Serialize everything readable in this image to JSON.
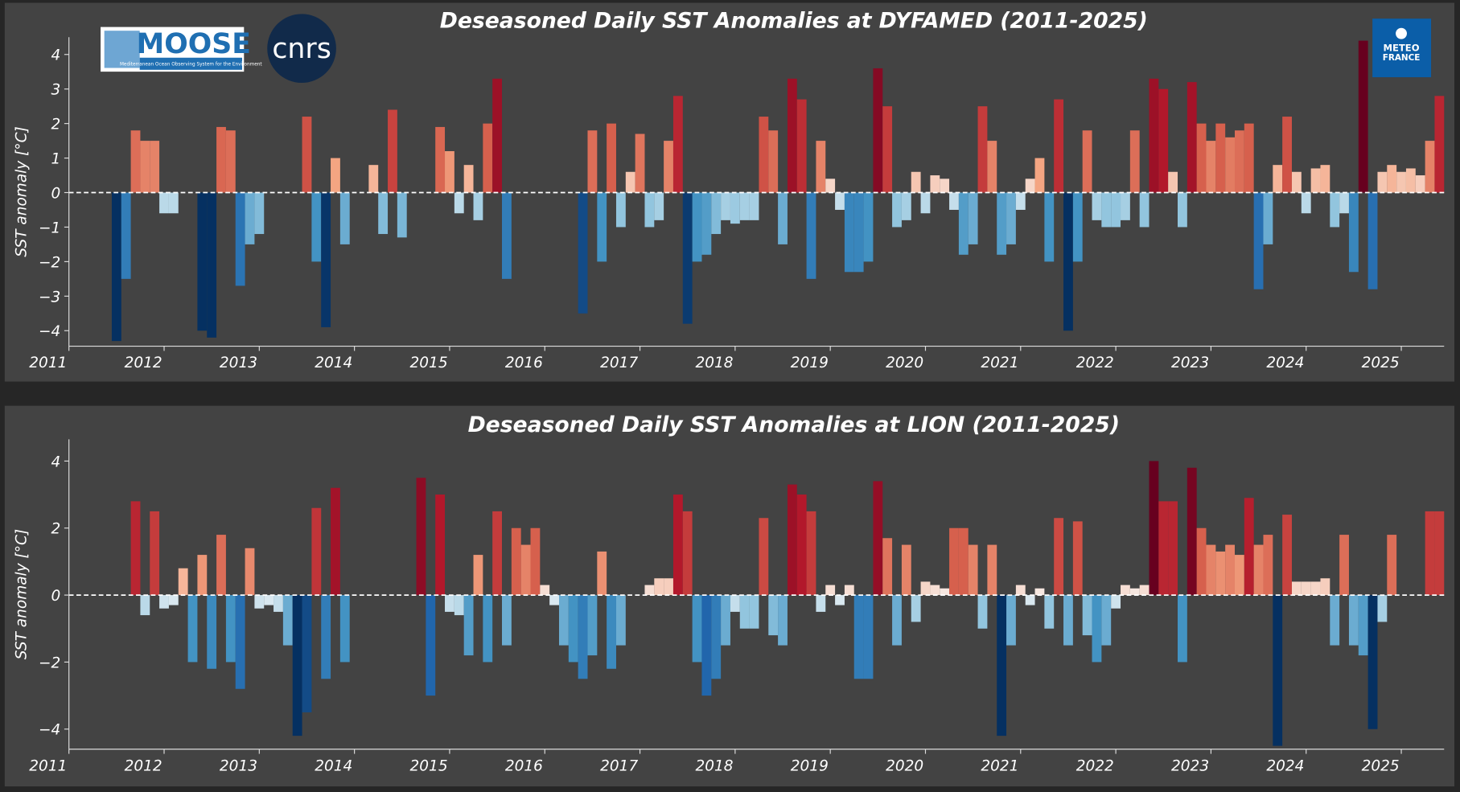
{
  "chart_data": [
    {
      "type": "bar",
      "title": "Deseasoned Daily SST Anomalies at DYFAMED (2011-2025)",
      "ylabel": "SST anomaly [°C]",
      "x": [
        2011.5,
        2011.6,
        2011.7,
        2011.8,
        2011.9,
        2012,
        2012.1,
        2012.2,
        2012.3,
        2012.4,
        2012.5,
        2012.6,
        2012.7,
        2012.8,
        2012.9,
        2013,
        2013.1,
        2013.2,
        2013.3,
        2013.4,
        2013.5,
        2013.6,
        2013.7,
        2013.8,
        2013.9,
        2014,
        2014.1,
        2014.2,
        2014.3,
        2014.4,
        2014.5,
        2014.6,
        2014.7,
        2014.8,
        2014.9,
        2015,
        2015.1,
        2015.2,
        2015.3,
        2015.4,
        2015.5,
        2015.6,
        2015.7,
        2015.8,
        2015.9,
        2016,
        2016.1,
        2016.2,
        2016.3,
        2016.4,
        2016.5,
        2016.6,
        2016.7,
        2016.8,
        2016.9,
        2017,
        2017.1,
        2017.2,
        2017.3,
        2017.4,
        2017.5,
        2017.6,
        2017.7,
        2017.8,
        2017.9,
        2018,
        2018.1,
        2018.2,
        2018.3,
        2018.4,
        2018.5,
        2018.6,
        2018.7,
        2018.8,
        2018.9,
        2019,
        2019.1,
        2019.2,
        2019.3,
        2019.4,
        2019.5,
        2019.6,
        2019.7,
        2019.8,
        2019.9,
        2020,
        2020.1,
        2020.2,
        2020.3,
        2020.4,
        2020.5,
        2020.6,
        2020.7,
        2020.8,
        2020.9,
        2021,
        2021.1,
        2021.2,
        2021.3,
        2021.4,
        2021.5,
        2021.6,
        2021.7,
        2021.8,
        2021.9,
        2022,
        2022.1,
        2022.2,
        2022.3,
        2022.4,
        2022.5,
        2022.6,
        2022.7,
        2022.8,
        2022.9,
        2023,
        2023.1,
        2023.2,
        2023.3,
        2023.4,
        2023.5,
        2023.6,
        2023.7,
        2023.8,
        2023.9,
        2024,
        2024.1,
        2024.2,
        2024.3,
        2024.4,
        2024.5,
        2024.6,
        2024.7,
        2024.8,
        2024.9,
        2025,
        2025.1,
        2025.2,
        2025.3,
        2025.4
      ],
      "values": [
        -4.3,
        -2.5,
        1.8,
        1.5,
        1.5,
        -0.6,
        -0.6,
        null,
        null,
        -4.0,
        -4.2,
        1.9,
        1.8,
        -2.7,
        -1.5,
        -1.2,
        null,
        null,
        null,
        null,
        2.2,
        -2.0,
        -3.9,
        1.0,
        -1.5,
        null,
        null,
        0.8,
        -1.2,
        2.4,
        -1.3,
        null,
        null,
        null,
        1.9,
        1.2,
        -0.6,
        0.8,
        -0.8,
        2.0,
        3.3,
        -2.5,
        null,
        null,
        null,
        null,
        null,
        null,
        null,
        -3.5,
        1.8,
        -2.0,
        2.0,
        -1.0,
        0.6,
        1.7,
        -1.0,
        -0.8,
        1.5,
        2.8,
        -3.8,
        -2.0,
        -1.8,
        -1.2,
        -0.8,
        -0.9,
        -0.8,
        -0.8,
        2.2,
        1.8,
        -1.5,
        3.3,
        2.7,
        -2.5,
        1.5,
        0.4,
        -0.5,
        -2.3,
        -2.3,
        -2.0,
        3.6,
        2.5,
        -1.0,
        -0.8,
        0.6,
        -0.6,
        0.5,
        0.4,
        -0.5,
        -1.8,
        -1.5,
        2.5,
        1.5,
        -1.8,
        -1.5,
        -0.5,
        0.4,
        1.0,
        -2.0,
        2.7,
        -4.0,
        -2.0,
        1.8,
        -0.8,
        -1.0,
        -1.0,
        -0.8,
        1.8,
        -1.0,
        3.3,
        3.0,
        0.6,
        -1.0,
        3.2,
        2.0,
        1.5,
        2.0,
        1.6,
        1.8,
        2.0,
        -2.8,
        -1.5,
        0.8,
        2.2,
        0.6,
        -0.6,
        0.7,
        0.8,
        -1.0,
        -0.6,
        -2.3,
        4.4,
        -2.8,
        0.6,
        0.8,
        0.6,
        0.7,
        0.5,
        1.5,
        2.8
      ],
      "xlim": [
        2011,
        2025.45
      ],
      "xticks": [
        2011,
        2012,
        2013,
        2014,
        2015,
        2016,
        2017,
        2018,
        2019,
        2020,
        2021,
        2022,
        2023,
        2024,
        2025
      ],
      "ylim": [
        -4.45,
        4.5
      ],
      "yticks": [
        {
          "value": -4,
          "label": "−4"
        },
        {
          "value": -3,
          "label": "−3"
        },
        {
          "value": -2,
          "label": "−2"
        },
        {
          "value": -1,
          "label": "−1"
        },
        0,
        1,
        2,
        3,
        4
      ],
      "colormap": [
        "#053061",
        "#2166ac",
        "#4393c3",
        "#92c5de",
        "#f7f7f7",
        "#f4a582",
        "#d6604d",
        "#b2182b",
        "#67001f"
      ],
      "clim": [
        -4,
        4
      ],
      "zero_line": true
    },
    {
      "type": "bar",
      "title": "Deseasoned Daily SST Anomalies at LION (2011-2025)",
      "ylabel": "SST anomaly [°C]",
      "x": [
        2011.7,
        2011.8,
        2011.9,
        2012,
        2012.1,
        2012.2,
        2012.3,
        2012.4,
        2012.5,
        2012.6,
        2012.7,
        2012.8,
        2012.9,
        2013,
        2013.1,
        2013.2,
        2013.3,
        2013.4,
        2013.5,
        2013.6,
        2013.7,
        2013.8,
        2013.9,
        2014,
        2014.1,
        2014.2,
        2014.3,
        2014.4,
        2014.5,
        2014.6,
        2014.7,
        2014.8,
        2014.9,
        2015,
        2015.1,
        2015.2,
        2015.3,
        2015.4,
        2015.5,
        2015.6,
        2015.7,
        2015.8,
        2015.9,
        2016,
        2016.1,
        2016.2,
        2016.3,
        2016.4,
        2016.5,
        2016.6,
        2016.7,
        2016.8,
        2016.9,
        2017,
        2017.1,
        2017.2,
        2017.3,
        2017.4,
        2017.5,
        2017.6,
        2017.7,
        2017.8,
        2017.9,
        2018,
        2018.1,
        2018.2,
        2018.3,
        2018.4,
        2018.5,
        2018.6,
        2018.7,
        2018.8,
        2018.9,
        2019,
        2019.1,
        2019.2,
        2019.3,
        2019.4,
        2019.5,
        2019.6,
        2019.7,
        2019.8,
        2019.9,
        2020,
        2020.1,
        2020.2,
        2020.3,
        2020.4,
        2020.5,
        2020.6,
        2020.7,
        2020.8,
        2020.9,
        2021,
        2021.1,
        2021.2,
        2021.3,
        2021.4,
        2021.5,
        2021.6,
        2021.7,
        2021.8,
        2021.9,
        2022,
        2022.1,
        2022.2,
        2022.3,
        2022.4,
        2022.5,
        2022.6,
        2022.7,
        2022.8,
        2022.9,
        2023,
        2023.1,
        2023.2,
        2023.3,
        2023.4,
        2023.5,
        2023.6,
        2023.7,
        2023.8,
        2023.9,
        2024,
        2024.1,
        2024.2,
        2024.3,
        2024.4,
        2024.5,
        2024.6,
        2024.7,
        2024.8,
        2024.9,
        2025,
        2025.1,
        2025.2,
        2025.3,
        2025.4
      ],
      "values": [
        2.8,
        -0.6,
        2.5,
        -0.4,
        -0.3,
        0.8,
        -2.0,
        1.2,
        -2.2,
        1.8,
        -2.0,
        -2.8,
        1.4,
        -0.4,
        -0.3,
        -0.5,
        -1.5,
        -4.2,
        -3.5,
        2.6,
        -2.5,
        3.2,
        -2.0,
        null,
        null,
        null,
        null,
        null,
        null,
        null,
        3.5,
        -3.0,
        3.0,
        -0.5,
        -0.6,
        -1.8,
        1.2,
        -2.0,
        2.5,
        -1.5,
        2.0,
        1.5,
        2.0,
        0.3,
        -0.3,
        -1.5,
        -2.0,
        -2.5,
        -1.8,
        1.3,
        -2.2,
        -1.5,
        null,
        null,
        0.3,
        0.5,
        0.5,
        3.0,
        2.5,
        -2.0,
        -3.0,
        -2.5,
        -1.5,
        -0.5,
        -1.0,
        -1.0,
        2.3,
        -1.2,
        -1.5,
        3.3,
        3.0,
        2.5,
        -0.5,
        0.3,
        -0.3,
        0.3,
        -2.5,
        -2.5,
        3.4,
        1.7,
        -1.5,
        1.5,
        -0.8,
        0.4,
        0.3,
        0.2,
        2.0,
        2.0,
        1.5,
        -1.0,
        1.5,
        -4.2,
        -1.5,
        0.3,
        -0.3,
        0.2,
        -1.0,
        2.3,
        -1.5,
        2.2,
        -1.2,
        -2.0,
        -1.5,
        -0.4,
        0.3,
        0.2,
        0.3,
        4.0,
        2.8,
        2.8,
        -2.0,
        3.8,
        2.0,
        1.5,
        1.3,
        1.5,
        1.2,
        2.9,
        1.5,
        1.8,
        -4.5,
        2.4,
        0.4,
        0.4,
        0.4,
        0.5,
        -1.5,
        1.8,
        -1.5,
        -1.8,
        -4.0,
        -0.8,
        1.8,
        null,
        null,
        null,
        2.5,
        2.5
      ],
      "xlim": [
        2011,
        2025.45
      ],
      "xticks": [
        2011,
        2012,
        2013,
        2014,
        2015,
        2016,
        2017,
        2018,
        2019,
        2020,
        2021,
        2022,
        2023,
        2024,
        2025
      ],
      "ylim": [
        -4.6,
        4.65
      ],
      "yticks": [
        {
          "value": -4,
          "label": "−4"
        },
        {
          "value": -2,
          "label": "−2"
        },
        0,
        2,
        4
      ],
      "colormap": [
        "#053061",
        "#2166ac",
        "#4393c3",
        "#92c5de",
        "#f7f7f7",
        "#f4a582",
        "#d6604d",
        "#b2182b",
        "#67001f"
      ],
      "clim": [
        -4,
        4
      ],
      "zero_line": true
    }
  ],
  "logos": {
    "moose": "MOOSE",
    "moose_tagline": "Mediterranean Ocean Observing System for the Environment",
    "cnrs": "cnrs",
    "meteo_line1": "METEO",
    "meteo_line2": "FRANCE"
  }
}
